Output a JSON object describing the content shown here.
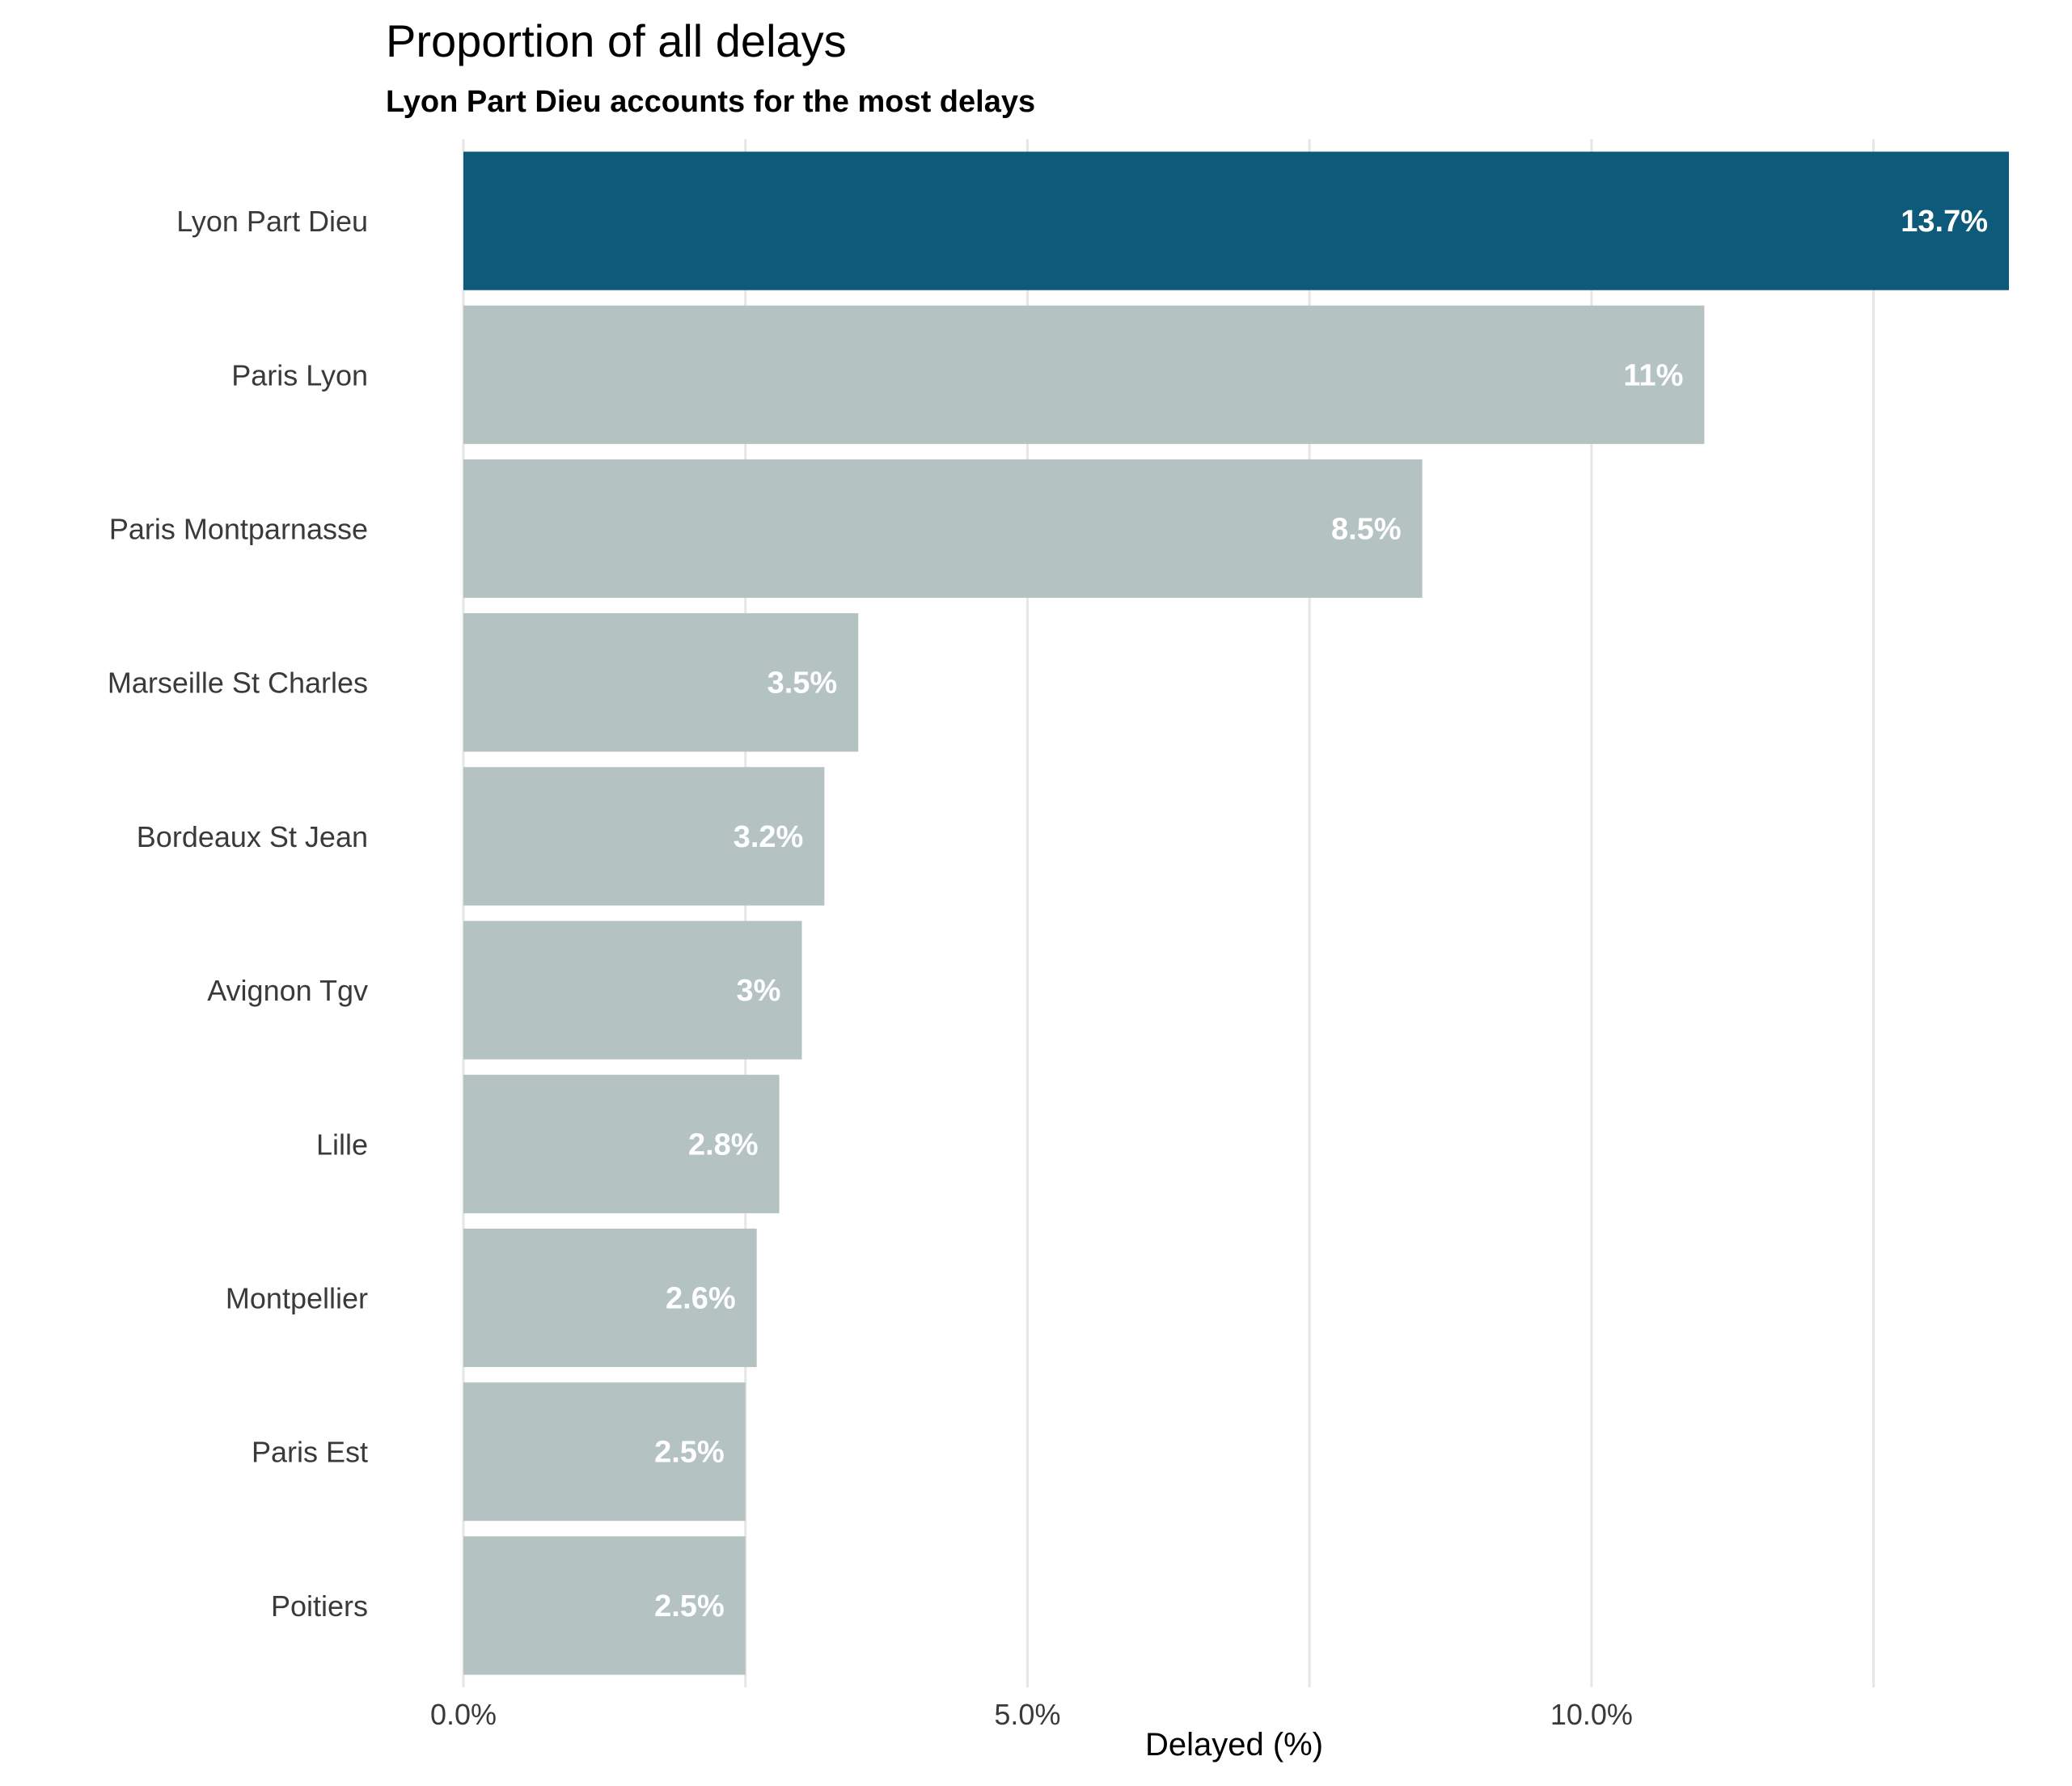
{
  "chart_data": {
    "type": "bar",
    "orientation": "horizontal",
    "title": "Proportion of all delays",
    "subtitle": "Lyon Part Dieu accounts for the most delays",
    "xlabel": "Delayed (%)",
    "ylabel": "",
    "xlim": [
      0,
      13.7
    ],
    "x_ticks": [
      0,
      5,
      10
    ],
    "x_tick_labels": [
      "0.0%",
      "5.0%",
      "10.0%"
    ],
    "grid": true,
    "categories": [
      "Lyon Part Dieu",
      "Paris Lyon",
      "Paris Montparnasse",
      "Marseille St Charles",
      "Bordeaux St Jean",
      "Avignon Tgv",
      "Lille",
      "Montpellier",
      "Paris Est",
      "Poitiers"
    ],
    "values": [
      13.7,
      11.0,
      8.5,
      3.5,
      3.2,
      3.0,
      2.8,
      2.6,
      2.5,
      2.5
    ],
    "value_labels": [
      "13.7%",
      "11%",
      "8.5%",
      "3.5%",
      "3.2%",
      "3%",
      "2.8%",
      "2.6%",
      "2.5%",
      "2.5%"
    ],
    "highlight_category": "Lyon Part Dieu",
    "colors": {
      "highlight": "#0e5a7a",
      "default": "#b4c3c2",
      "grid": "#e6e6e6"
    }
  }
}
